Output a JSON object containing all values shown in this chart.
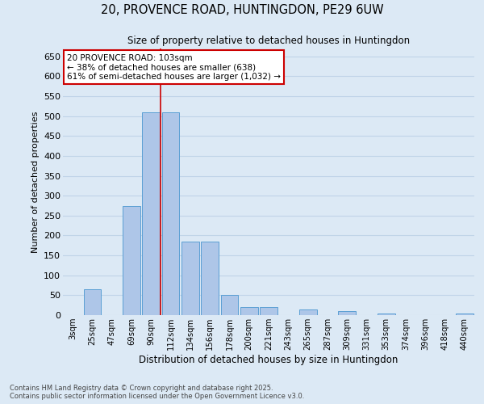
{
  "title_line1": "20, PROVENCE ROAD, HUNTINGDON, PE29 6UW",
  "title_line2": "Size of property relative to detached houses in Huntingdon",
  "xlabel": "Distribution of detached houses by size in Huntingdon",
  "ylabel": "Number of detached properties",
  "footnote": "Contains HM Land Registry data © Crown copyright and database right 2025.\nContains public sector information licensed under the Open Government Licence v3.0.",
  "categories": [
    "3sqm",
    "25sqm",
    "47sqm",
    "69sqm",
    "90sqm",
    "112sqm",
    "134sqm",
    "156sqm",
    "178sqm",
    "200sqm",
    "221sqm",
    "243sqm",
    "265sqm",
    "287sqm",
    "309sqm",
    "331sqm",
    "353sqm",
    "374sqm",
    "396sqm",
    "418sqm",
    "440sqm"
  ],
  "values": [
    0,
    65,
    0,
    275,
    510,
    510,
    185,
    185,
    50,
    20,
    20,
    0,
    15,
    0,
    10,
    0,
    5,
    0,
    0,
    0,
    5
  ],
  "bar_color": "#aec6e8",
  "bar_edge_color": "#5a9fd4",
  "property_line_x": 4.5,
  "property_label": "20 PROVENCE ROAD: 103sqm",
  "annotation_line2": "← 38% of detached houses are smaller (638)",
  "annotation_line3": "61% of semi-detached houses are larger (1,032) →",
  "annotation_box_color": "#cc0000",
  "annotation_bg": "#ffffff",
  "ylim": [
    0,
    670
  ],
  "yticks": [
    0,
    50,
    100,
    150,
    200,
    250,
    300,
    350,
    400,
    450,
    500,
    550,
    600,
    650
  ],
  "grid_color": "#c0d4e8",
  "background_color": "#dce9f5"
}
